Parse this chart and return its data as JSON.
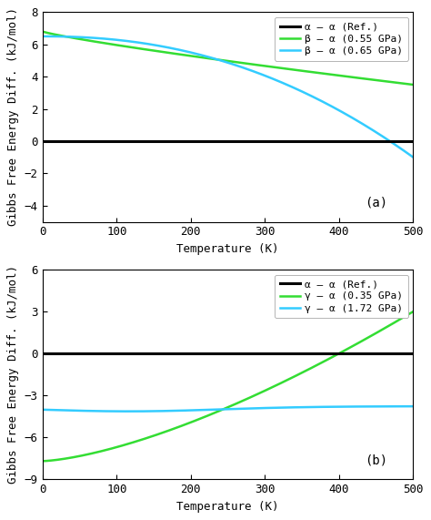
{
  "panel_a": {
    "title_label": "(a)",
    "ylim": [
      -5,
      8
    ],
    "yticks": [
      -4,
      -2,
      0,
      2,
      4,
      6,
      8
    ],
    "xlabel": "Temperature (K)",
    "ylabel": "Gibbs Free Energy Diff. (kJ/mol)",
    "xlim": [
      0,
      500
    ],
    "xticks": [
      0,
      100,
      200,
      300,
      400,
      500
    ],
    "ref_label": "α – α (Ref.)",
    "line1_label": "β – α (0.55 GPa)",
    "line2_label": "β – α (0.65 GPa)",
    "ref_color": "black",
    "line1_color": "#33dd33",
    "line2_color": "#33ccff",
    "line1_p": 1.5,
    "line1_start": 6.8,
    "line1_end": 3.5,
    "line2_p": 2.2,
    "line2_start": 6.5,
    "line2_end": -1.0
  },
  "panel_b": {
    "title_label": "(b)",
    "ylim": [
      -9,
      6
    ],
    "yticks": [
      -9,
      -6,
      -3,
      0,
      3,
      6
    ],
    "xlabel": "Temperature (K)",
    "ylabel": "Gibbs Free Energy Diff. (kJ/mol)",
    "xlim": [
      0,
      500
    ],
    "xticks": [
      0,
      100,
      200,
      300,
      400,
      500
    ],
    "ref_label": "α – α (Ref.)",
    "line1_label": "γ – α (0.35 GPa)",
    "line2_label": "γ – α (1.72 GPa)",
    "ref_color": "black",
    "line1_color": "#33dd33",
    "line2_color": "#33ccff",
    "line1_start": -7.7,
    "line1_end": 3.0,
    "line1_p": 1.8,
    "line2_start": -3.8,
    "line2_mid": -4.15,
    "line2_end": -3.75
  },
  "bg_color": "#ffffff",
  "ref_linewidth": 2.2,
  "linewidth": 1.8,
  "legend_fontsize": 8,
  "tick_labelsize": 9,
  "axis_labelsize": 9,
  "label_fontsize": 10
}
